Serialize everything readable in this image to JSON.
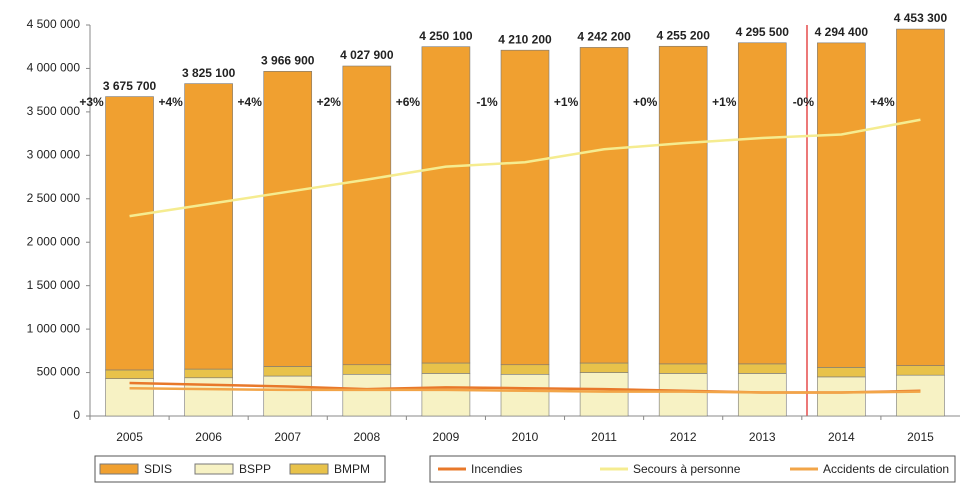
{
  "chart_data": {
    "type": "bar",
    "categories": [
      "2005",
      "2006",
      "2007",
      "2008",
      "2009",
      "2010",
      "2011",
      "2012",
      "2013",
      "2014",
      "2015"
    ],
    "series": [
      {
        "name": "BSPP",
        "color": "#f7f2c4",
        "values": [
          430000,
          440000,
          460000,
          480000,
          490000,
          480000,
          500000,
          490000,
          490000,
          450000,
          470000
        ]
      },
      {
        "name": "BMPM",
        "color": "#e8c24a",
        "values": [
          100000,
          100000,
          110000,
          110000,
          120000,
          110000,
          110000,
          110000,
          110000,
          110000,
          110000
        ]
      },
      {
        "name": "SDIS",
        "color": "#f0a030",
        "values": [
          3145700,
          3285100,
          3396900,
          3437900,
          3640100,
          3620200,
          3632200,
          3655200,
          3695500,
          3734400,
          3873300
        ]
      }
    ],
    "totals": [
      3675700,
      3825100,
      3966900,
      4027900,
      4250100,
      4210200,
      4242200,
      4255200,
      4295500,
      4294400,
      4453300
    ],
    "total_labels": [
      "3 675 700",
      "3 825 100",
      "3 966 900",
      "4 027 900",
      "4 250 100",
      "4 210 200",
      "4 242 200",
      "4 255 200",
      "4 295 500",
      "4 294 400",
      "4 453 300"
    ],
    "growth_labels": [
      "+3%",
      "+4%",
      "+4%",
      "+2%",
      "+6%",
      "-1%",
      "+1%",
      "+0%",
      "+1%",
      "-0%",
      "+4%"
    ],
    "lines": [
      {
        "name": "Incendies",
        "color": "#e8782a",
        "values": [
          380000,
          360000,
          340000,
          310000,
          330000,
          320000,
          310000,
          290000,
          270000,
          270000,
          290000
        ]
      },
      {
        "name": "Secours à personne",
        "color": "#f5ec90",
        "values": [
          2300000,
          2440000,
          2580000,
          2720000,
          2870000,
          2920000,
          3070000,
          3140000,
          3200000,
          3240000,
          3410000
        ]
      },
      {
        "name": "Accidents de circulation",
        "color": "#f2a548",
        "values": [
          320000,
          310000,
          300000,
          300000,
          300000,
          290000,
          280000,
          280000,
          270000,
          270000,
          280000
        ]
      }
    ],
    "ylim": [
      0,
      4500000
    ],
    "yticks": [
      0,
      {
        "value": 500000,
        "label": "500 000"
      },
      {
        "value": 1000000,
        "label": "1 000 000"
      },
      {
        "value": 1500000,
        "label": "1 500 000"
      },
      {
        "value": 2000000,
        "label": "2 000 000"
      },
      {
        "value": 2500000,
        "label": "2 500 000"
      },
      {
        "value": 3000000,
        "label": "3 000 000"
      },
      {
        "value": 3500000,
        "label": "3 500 000"
      },
      {
        "value": 4000000,
        "label": "4 000 000"
      },
      {
        "value": 4500000,
        "label": "4 500 000"
      }
    ]
  }
}
